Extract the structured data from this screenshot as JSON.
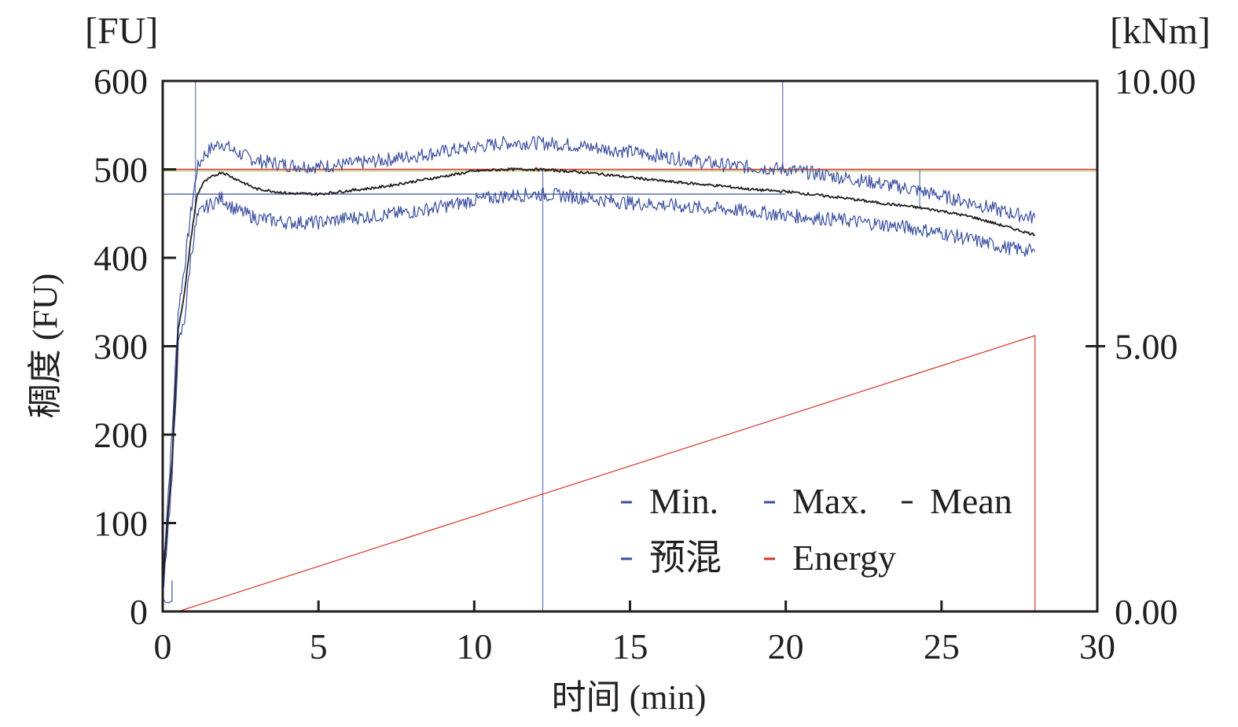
{
  "chart_data": {
    "type": "line",
    "title": "",
    "xlabel": "时间 (min)",
    "ylabel": "稠度 (FU)",
    "y_unit_label": "[FU]",
    "y2_unit_label": "[kNm]",
    "xlim": [
      0,
      30
    ],
    "ylim": [
      0,
      600
    ],
    "y2lim": [
      0,
      10
    ],
    "x_ticks": [
      "0",
      "5",
      "10",
      "15",
      "20",
      "25",
      "30"
    ],
    "x_tick_values": [
      0,
      5,
      10,
      15,
      20,
      25,
      30
    ],
    "y_ticks": [
      "0",
      "100",
      "200",
      "300",
      "400",
      "500",
      "600"
    ],
    "y_tick_values": [
      0,
      100,
      200,
      300,
      400,
      500,
      600
    ],
    "y2_ticks": [
      "0.00",
      "5.00",
      "10.00"
    ],
    "y2_tick_values": [
      0,
      5,
      10
    ],
    "grid": false,
    "legend_position": "bottom-right",
    "colors": {
      "min": "#3a4fa0",
      "max": "#3a4fa0",
      "mean": "#231f20",
      "premix": "#3a4fa0",
      "energy": "#d9332b",
      "frame": "#231f20",
      "reference_line": "#d9332b",
      "reference_line_secondary": "#b5c96a"
    },
    "series": [
      {
        "name": "Max.",
        "axis": "left",
        "x": [
          0.0,
          0.3,
          0.5,
          0.7,
          0.9,
          1.1,
          1.3,
          1.6,
          1.9,
          2.3,
          3.0,
          4.0,
          5.0,
          6.0,
          7.0,
          8.0,
          9.0,
          10.0,
          11.0,
          12.0,
          13.0,
          14.0,
          15.0,
          16.0,
          17.0,
          18.0,
          19.0,
          20.0,
          21.0,
          22.0,
          23.0,
          24.0,
          25.0,
          26.0,
          27.0,
          28.0
        ],
        "values": [
          40,
          200,
          340,
          390,
          450,
          500,
          515,
          525,
          530,
          520,
          510,
          505,
          503,
          506,
          510,
          515,
          520,
          525,
          530,
          530,
          528,
          524,
          520,
          515,
          510,
          505,
          502,
          500,
          495,
          490,
          484,
          478,
          470,
          462,
          452,
          445
        ]
      },
      {
        "name": "Min.",
        "axis": "left",
        "x": [
          0.0,
          0.3,
          0.5,
          0.7,
          0.9,
          1.1,
          1.3,
          1.6,
          1.9,
          2.3,
          3.0,
          4.0,
          5.0,
          6.0,
          7.0,
          8.0,
          9.0,
          10.0,
          11.0,
          12.0,
          13.0,
          14.0,
          15.0,
          16.0,
          17.0,
          18.0,
          19.0,
          20.0,
          21.0,
          22.0,
          23.0,
          24.0,
          25.0,
          26.0,
          27.0,
          28.0
        ],
        "values": [
          20,
          150,
          300,
          330,
          400,
          445,
          455,
          462,
          468,
          455,
          445,
          440,
          440,
          445,
          448,
          452,
          458,
          465,
          470,
          472,
          470,
          466,
          462,
          460,
          457,
          455,
          452,
          448,
          445,
          442,
          438,
          434,
          428,
          420,
          412,
          407
        ]
      },
      {
        "name": "Mean",
        "axis": "left",
        "x": [
          0.0,
          0.3,
          0.5,
          0.7,
          0.9,
          1.1,
          1.3,
          1.6,
          1.9,
          2.3,
          3.0,
          4.0,
          5.0,
          6.0,
          7.0,
          8.0,
          9.0,
          10.0,
          11.0,
          12.0,
          13.0,
          14.0,
          15.0,
          16.0,
          17.0,
          18.0,
          19.0,
          20.0,
          21.0,
          22.0,
          23.0,
          24.0,
          25.0,
          26.0,
          27.0,
          28.0
        ],
        "values": [
          30,
          170,
          320,
          360,
          420,
          470,
          485,
          492,
          497,
          490,
          478,
          473,
          472,
          476,
          480,
          486,
          492,
          498,
          500,
          500,
          498,
          495,
          491,
          487,
          484,
          481,
          477,
          475,
          471,
          467,
          462,
          458,
          453,
          446,
          436,
          426
        ]
      },
      {
        "name": "预混",
        "axis": "left",
        "x": [
          0.0,
          0.1,
          0.2,
          0.3,
          0.3
        ],
        "values": [
          15,
          10,
          10,
          12,
          35
        ]
      },
      {
        "name": "Energy",
        "axis": "right",
        "x": [
          0.5,
          28.0,
          28.0
        ],
        "values": [
          0.0,
          5.2,
          0.0
        ]
      }
    ],
    "reference_lines": [
      {
        "orientation": "horizontal",
        "axis": "left",
        "value": 500,
        "color_key": "reference_line"
      },
      {
        "orientation": "horizontal",
        "axis": "left",
        "value": 472,
        "color_key": "min",
        "x_range": [
          0,
          20
        ]
      },
      {
        "orientation": "vertical",
        "value": 1.05,
        "y_range": [
          450,
          600
        ]
      },
      {
        "orientation": "vertical",
        "value": 12.2,
        "y_range": [
          0,
          500
        ]
      },
      {
        "orientation": "vertical",
        "value": 19.9,
        "y_range": [
          500,
          600
        ]
      },
      {
        "orientation": "vertical",
        "value": 24.3,
        "y_range": [
          455,
          500
        ]
      }
    ],
    "legend": [
      {
        "label": "Min.",
        "color_key": "min"
      },
      {
        "label": "Max.",
        "color_key": "max"
      },
      {
        "label": "Mean",
        "color_key": "mean"
      },
      {
        "label": "预混",
        "color_key": "premix"
      },
      {
        "label": "Energy",
        "color_key": "energy"
      }
    ]
  }
}
